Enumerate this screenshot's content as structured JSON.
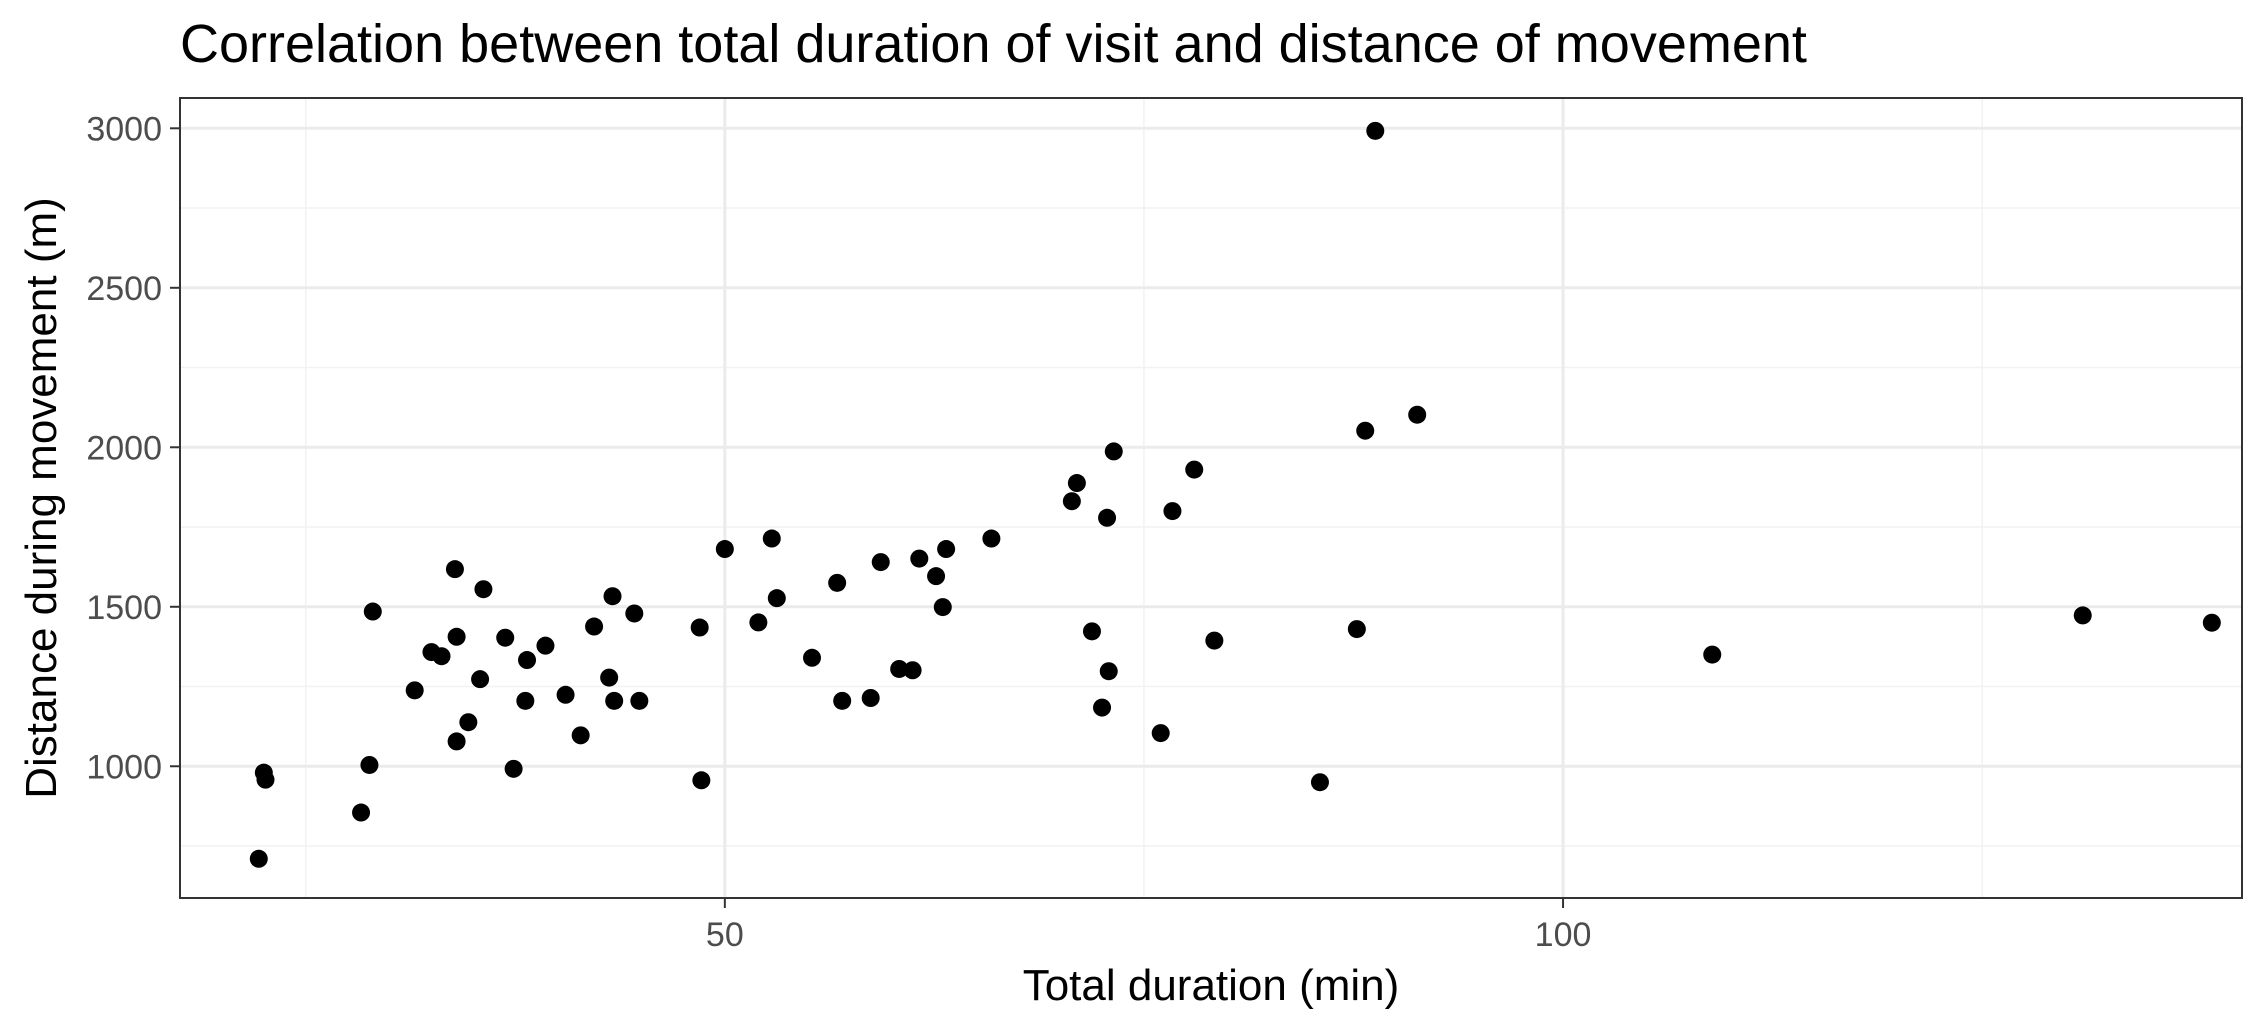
{
  "chart_data": {
    "type": "scatter",
    "title": "Correlation between total duration of visit and distance of movement",
    "xlabel": "Total duration (min)",
    "ylabel": "Distance during movement (m)",
    "xlim": [
      17.5,
      140.5
    ],
    "ylim": [
      587,
      3095
    ],
    "x_ticks": [
      50,
      100
    ],
    "x_minor_ticks": [
      25,
      75,
      125
    ],
    "y_ticks": [
      1000,
      1500,
      2000,
      2500,
      3000
    ],
    "y_minor_ticks": [
      750,
      1250,
      1750,
      2250,
      2750
    ],
    "grid": true,
    "legend": "none",
    "point_color": "#000000",
    "points": [
      {
        "x": 22.2,
        "y": 710
      },
      {
        "x": 22.5,
        "y": 980
      },
      {
        "x": 22.6,
        "y": 958
      },
      {
        "x": 28.3,
        "y": 855
      },
      {
        "x": 28.8,
        "y": 1004
      },
      {
        "x": 29.0,
        "y": 1485
      },
      {
        "x": 31.5,
        "y": 1238
      },
      {
        "x": 32.5,
        "y": 1358
      },
      {
        "x": 33.1,
        "y": 1345
      },
      {
        "x": 33.9,
        "y": 1618
      },
      {
        "x": 34.0,
        "y": 1406
      },
      {
        "x": 34.0,
        "y": 1078
      },
      {
        "x": 34.7,
        "y": 1138
      },
      {
        "x": 35.4,
        "y": 1273
      },
      {
        "x": 35.6,
        "y": 1555
      },
      {
        "x": 36.9,
        "y": 1403
      },
      {
        "x": 37.4,
        "y": 992
      },
      {
        "x": 38.1,
        "y": 1205
      },
      {
        "x": 38.2,
        "y": 1333
      },
      {
        "x": 39.3,
        "y": 1378
      },
      {
        "x": 40.5,
        "y": 1224
      },
      {
        "x": 41.4,
        "y": 1097
      },
      {
        "x": 42.2,
        "y": 1438
      },
      {
        "x": 43.1,
        "y": 1278
      },
      {
        "x": 43.3,
        "y": 1533
      },
      {
        "x": 43.4,
        "y": 1205
      },
      {
        "x": 44.6,
        "y": 1479
      },
      {
        "x": 44.9,
        "y": 1205
      },
      {
        "x": 48.5,
        "y": 1435
      },
      {
        "x": 48.6,
        "y": 956
      },
      {
        "x": 50.0,
        "y": 1681
      },
      {
        "x": 52.0,
        "y": 1451
      },
      {
        "x": 52.8,
        "y": 1714
      },
      {
        "x": 53.1,
        "y": 1527
      },
      {
        "x": 55.2,
        "y": 1340
      },
      {
        "x": 56.7,
        "y": 1575
      },
      {
        "x": 57.0,
        "y": 1205
      },
      {
        "x": 58.7,
        "y": 1214
      },
      {
        "x": 59.3,
        "y": 1640
      },
      {
        "x": 60.4,
        "y": 1305
      },
      {
        "x": 61.2,
        "y": 1301
      },
      {
        "x": 61.6,
        "y": 1651
      },
      {
        "x": 62.6,
        "y": 1596
      },
      {
        "x": 63.0,
        "y": 1499
      },
      {
        "x": 63.2,
        "y": 1681
      },
      {
        "x": 65.9,
        "y": 1714
      },
      {
        "x": 70.7,
        "y": 1831
      },
      {
        "x": 71.0,
        "y": 1888
      },
      {
        "x": 71.9,
        "y": 1423
      },
      {
        "x": 72.5,
        "y": 1184
      },
      {
        "x": 72.8,
        "y": 1779
      },
      {
        "x": 72.9,
        "y": 1298
      },
      {
        "x": 73.2,
        "y": 1987
      },
      {
        "x": 76.0,
        "y": 1104
      },
      {
        "x": 76.7,
        "y": 1800
      },
      {
        "x": 78.0,
        "y": 1930
      },
      {
        "x": 79.2,
        "y": 1394
      },
      {
        "x": 85.5,
        "y": 950
      },
      {
        "x": 87.7,
        "y": 1430
      },
      {
        "x": 88.2,
        "y": 2052
      },
      {
        "x": 88.8,
        "y": 2992
      },
      {
        "x": 91.3,
        "y": 2102
      },
      {
        "x": 108.9,
        "y": 1350
      },
      {
        "x": 131.0,
        "y": 1473
      },
      {
        "x": 138.7,
        "y": 1450
      }
    ]
  }
}
